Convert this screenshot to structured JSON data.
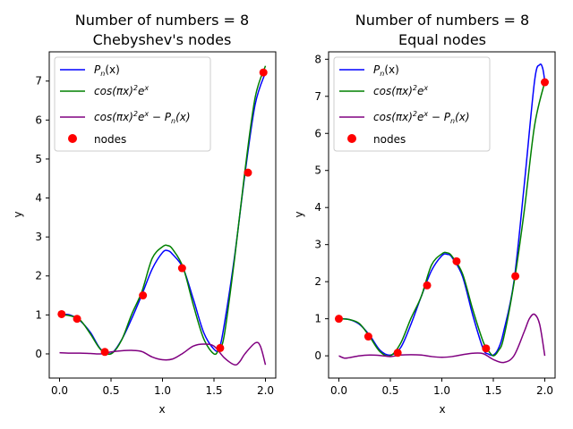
{
  "chart_data": [
    {
      "type": "line",
      "title_line1": "Number of numbers = 8",
      "title_line2": "Chebyshev's nodes",
      "xlabel": "x",
      "ylabel": "y",
      "xlim": [
        -0.1,
        2.1
      ],
      "ylim": [
        -0.62,
        7.75
      ],
      "xticks": [
        0.0,
        0.5,
        1.0,
        1.5,
        2.0
      ],
      "xtick_labels": [
        "0.0",
        "0.5",
        "1.0",
        "1.5",
        "2.0"
      ],
      "yticks": [
        0,
        1,
        2,
        3,
        4,
        5,
        6,
        7
      ],
      "ytick_labels": [
        "0",
        "1",
        "2",
        "3",
        "4",
        "5",
        "6",
        "7"
      ],
      "grid": false,
      "legend_position": "upper-left",
      "legend": [
        {
          "label_base": "P",
          "label_sub": "n",
          "label_rest": "(x)",
          "color": "#0000ff",
          "kind": "line"
        },
        {
          "label_main": "cos(πx)",
          "label_sup1": "2",
          "label_mid": "e",
          "label_sup2": "x",
          "color": "#008000",
          "kind": "line"
        },
        {
          "label_main": "cos(πx)",
          "label_sup1": "2",
          "label_mid": "e",
          "label_sup2": "x",
          "label_tail": " − P",
          "label_sub": "n",
          "label_end": "(x)",
          "color": "#800080",
          "kind": "line"
        },
        {
          "label": "nodes",
          "color": "#ff0000",
          "kind": "marker"
        }
      ],
      "series": [
        {
          "color": "#0000ff",
          "x": [
            0.0,
            0.1,
            0.2,
            0.3,
            0.4,
            0.5,
            0.6,
            0.7,
            0.8,
            0.9,
            1.0,
            1.05,
            1.1,
            1.2,
            1.3,
            1.4,
            1.5,
            1.55,
            1.6,
            1.7,
            1.8,
            1.9,
            2.0
          ],
          "y": [
            1.02,
            1.0,
            0.85,
            0.55,
            0.12,
            0.01,
            0.35,
            0.9,
            1.52,
            2.18,
            2.6,
            2.65,
            2.55,
            2.2,
            1.4,
            0.55,
            0.12,
            0.14,
            0.75,
            2.5,
            4.6,
            6.4,
            7.22
          ]
        },
        {
          "color": "#008000",
          "x": [
            0.0,
            0.1,
            0.2,
            0.3,
            0.4,
            0.5,
            0.6,
            0.7,
            0.8,
            0.9,
            1.0,
            1.05,
            1.1,
            1.2,
            1.3,
            1.4,
            1.5,
            1.55,
            1.6,
            1.7,
            1.8,
            1.9,
            2.0
          ],
          "y": [
            1.0,
            0.98,
            0.87,
            0.51,
            0.11,
            0.0,
            0.34,
            1.01,
            1.6,
            2.45,
            2.75,
            2.78,
            2.68,
            2.22,
            1.25,
            0.39,
            0.0,
            0.14,
            0.48,
            2.44,
            4.68,
            6.58,
            7.39
          ]
        },
        {
          "color": "#800080",
          "x": [
            0.0,
            0.1,
            0.2,
            0.3,
            0.4,
            0.5,
            0.6,
            0.7,
            0.8,
            0.9,
            1.0,
            1.1,
            1.2,
            1.3,
            1.4,
            1.5,
            1.6,
            1.7,
            1.75,
            1.8,
            1.9,
            1.95,
            2.0
          ],
          "y": [
            0.03,
            0.02,
            0.02,
            0.01,
            0.0,
            0.05,
            0.08,
            0.09,
            0.06,
            -0.08,
            -0.15,
            -0.13,
            0.02,
            0.2,
            0.25,
            0.2,
            -0.1,
            -0.28,
            -0.2,
            0.0,
            0.28,
            0.2,
            -0.28
          ]
        }
      ],
      "nodes": {
        "label": "nodes",
        "color": "#ff0000",
        "x": [
          0.02,
          0.17,
          0.44,
          0.81,
          1.19,
          1.56,
          1.83,
          1.98
        ],
        "y": [
          1.02,
          0.9,
          0.05,
          1.5,
          2.2,
          0.15,
          4.65,
          7.22
        ]
      }
    },
    {
      "type": "line",
      "title_line1": "Number of numbers = 8",
      "title_line2": "Equal nodes",
      "xlabel": "x",
      "ylabel": "y",
      "xlim": [
        -0.1,
        2.1
      ],
      "ylim": [
        -0.6,
        8.2
      ],
      "xticks": [
        0.0,
        0.5,
        1.0,
        1.5,
        2.0
      ],
      "xtick_labels": [
        "0.0",
        "0.5",
        "1.0",
        "1.5",
        "2.0"
      ],
      "yticks": [
        0,
        1,
        2,
        3,
        4,
        5,
        6,
        7,
        8
      ],
      "ytick_labels": [
        "0",
        "1",
        "2",
        "3",
        "4",
        "5",
        "6",
        "7",
        "8"
      ],
      "grid": false,
      "legend_position": "upper-left",
      "legend": [
        {
          "label_base": "P",
          "label_sub": "n",
          "label_rest": "(x)",
          "color": "#0000ff",
          "kind": "line"
        },
        {
          "label_main": "cos(πx)",
          "label_sup1": "2",
          "label_mid": "e",
          "label_sup2": "x",
          "color": "#008000",
          "kind": "line"
        },
        {
          "label_main": "cos(πx)",
          "label_sup1": "2",
          "label_mid": "e",
          "label_sup2": "x",
          "label_tail": " − P",
          "label_sub": "n",
          "label_end": "(x)",
          "color": "#800080",
          "kind": "line"
        },
        {
          "label": "nodes",
          "color": "#ff0000",
          "kind": "marker"
        }
      ],
      "series": [
        {
          "color": "#0000ff",
          "x": [
            0.0,
            0.1,
            0.2,
            0.3,
            0.4,
            0.5,
            0.6,
            0.7,
            0.8,
            0.9,
            1.0,
            1.05,
            1.1,
            1.2,
            1.3,
            1.4,
            1.45,
            1.5,
            1.55,
            1.6,
            1.7,
            1.8,
            1.9,
            1.95,
            1.98,
            2.0
          ],
          "y": [
            1.0,
            0.98,
            0.85,
            0.55,
            0.15,
            0.02,
            0.22,
            0.85,
            1.6,
            2.3,
            2.7,
            2.74,
            2.65,
            2.15,
            1.1,
            0.2,
            0.05,
            0.02,
            0.2,
            0.65,
            2.0,
            4.6,
            7.4,
            7.85,
            7.75,
            7.4
          ]
        },
        {
          "color": "#008000",
          "x": [
            0.0,
            0.1,
            0.2,
            0.3,
            0.4,
            0.5,
            0.6,
            0.7,
            0.8,
            0.9,
            1.0,
            1.05,
            1.1,
            1.2,
            1.3,
            1.4,
            1.45,
            1.5,
            1.55,
            1.6,
            1.7,
            1.8,
            1.9,
            2.0
          ],
          "y": [
            1.0,
            0.98,
            0.87,
            0.51,
            0.11,
            0.0,
            0.34,
            1.01,
            1.6,
            2.45,
            2.75,
            2.78,
            2.68,
            2.22,
            1.25,
            0.39,
            0.15,
            0.0,
            0.14,
            0.48,
            1.95,
            3.9,
            6.2,
            7.39
          ]
        },
        {
          "color": "#800080",
          "x": [
            0.0,
            0.05,
            0.1,
            0.2,
            0.3,
            0.4,
            0.5,
            0.6,
            0.7,
            0.8,
            0.9,
            1.0,
            1.1,
            1.2,
            1.3,
            1.4,
            1.5,
            1.6,
            1.7,
            1.8,
            1.85,
            1.9,
            1.95,
            2.0
          ],
          "y": [
            0.0,
            -0.06,
            -0.05,
            0.0,
            0.02,
            0.01,
            -0.02,
            0.02,
            0.03,
            0.02,
            -0.02,
            -0.04,
            -0.02,
            0.03,
            0.07,
            0.06,
            -0.1,
            -0.18,
            0.0,
            0.65,
            1.0,
            1.12,
            0.85,
            0.0
          ]
        }
      ],
      "nodes": {
        "label": "nodes",
        "color": "#ff0000",
        "x": [
          0.0,
          0.286,
          0.571,
          0.857,
          1.143,
          1.429,
          1.714,
          2.0
        ],
        "y": [
          1.0,
          0.52,
          0.08,
          1.9,
          2.55,
          0.2,
          2.15,
          7.38
        ]
      }
    }
  ]
}
